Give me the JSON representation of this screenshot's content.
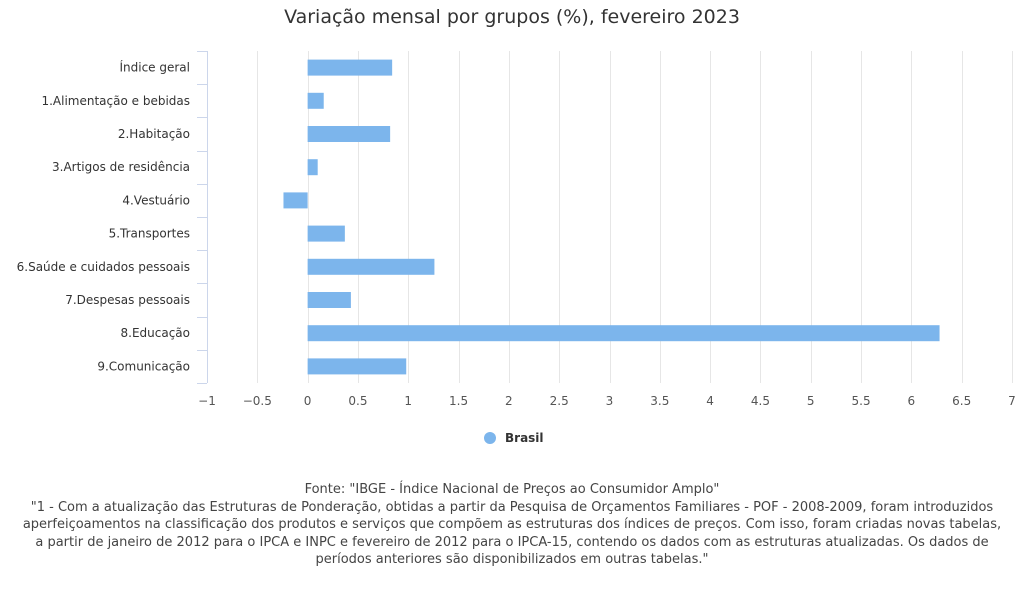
{
  "colors": {
    "bar": "#7cb5ec",
    "grid": "#e6e6e6",
    "axis": "#ccd6eb",
    "text": "#333333"
  },
  "chart_data": {
    "type": "bar",
    "orientation": "horizontal",
    "title": "Variação mensal por grupos (%), fevereiro 2023",
    "categories": [
      "Índice geral",
      "1.Alimentação e bebidas",
      "2.Habitação",
      "3.Artigos de residência",
      "4.Vestuário",
      "5.Transportes",
      "6.Saúde e cuidados pessoais",
      "7.Despesas pessoais",
      "8.Educação",
      "9.Comunicação"
    ],
    "series": [
      {
        "name": "Brasil",
        "values": [
          0.84,
          0.16,
          0.82,
          0.1,
          -0.24,
          0.37,
          1.26,
          0.43,
          6.28,
          0.98
        ],
        "color": "#7cb5ec"
      }
    ],
    "xlim": [
      -1,
      7
    ],
    "xticks": [
      -1,
      -0.5,
      0,
      0.5,
      1,
      1.5,
      2,
      2.5,
      3,
      3.5,
      4,
      4.5,
      5,
      5.5,
      6,
      6.5,
      7
    ],
    "xtick_labels": [
      "−1",
      "−0.5",
      "0",
      "0.5",
      "1",
      "1.5",
      "2",
      "2.5",
      "3",
      "3.5",
      "4",
      "4.5",
      "5",
      "5.5",
      "6",
      "6.5",
      "7"
    ],
    "xlabel": "",
    "ylabel": "",
    "grid": true,
    "legend_position": "bottom-center"
  },
  "notes": {
    "source": "Fonte: \"IBGE - Índice Nacional de Preços ao Consumidor Amplo\"",
    "footnote_lines": [
      "\"1 - Com a atualização das Estruturas de Ponderação, obtidas a partir da Pesquisa de Orçamentos Familiares - POF - 2008-2009, foram introduzidos",
      "aperfeiçoamentos na classificação dos produtos e serviços que compõem as estruturas dos índices de preços. Com isso, foram criadas novas tabelas,",
      "a partir de janeiro de 2012 para o IPCA e INPC e fevereiro de 2012 para o IPCA-15, contendo os dados com as estruturas atualizadas. Os dados de",
      "períodos anteriores são disponibilizados em outras tabelas.\""
    ]
  }
}
